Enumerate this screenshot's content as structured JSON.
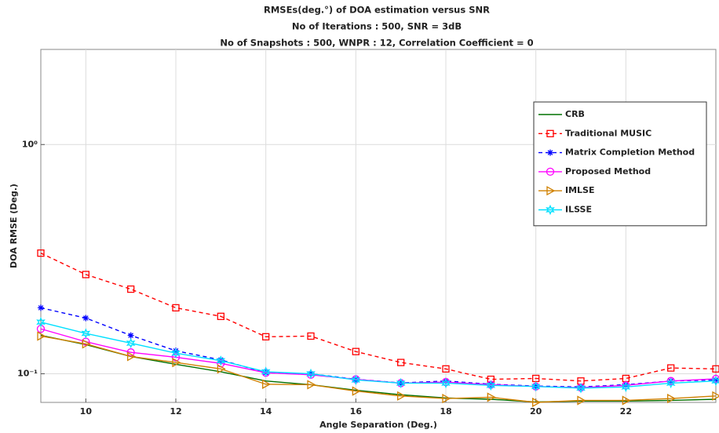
{
  "chart_data": {
    "type": "line",
    "title": [
      "RMSEs(deg.°) of DOA estimation versus SNR",
      "No of Iterations : 500, SNR = 3dB",
      "No of Snapshots : 500, WNPR : 12, Correlation Coefficient = 0"
    ],
    "xlabel": "Angle Separation (Deg.)",
    "ylabel": "DOA RMSE (Deg.)",
    "x": [
      9,
      10,
      11,
      12,
      13,
      14,
      15,
      16,
      17,
      18,
      19,
      20,
      21,
      22,
      23,
      24
    ],
    "xlim": [
      9,
      24
    ],
    "xticks": [
      10,
      12,
      14,
      16,
      18,
      20,
      22
    ],
    "yscale": "log",
    "ylim": [
      0.075,
      2.6
    ],
    "yticks": [
      {
        "value": 0.1,
        "label": "10⁻¹"
      },
      {
        "value": 1,
        "label": "10⁰"
      }
    ],
    "grid": true,
    "legend": "upper right",
    "series": [
      {
        "name": "CRB",
        "color": "#007000",
        "dash": "solid",
        "marker": "none",
        "values": [
          0.147,
          0.134,
          0.119,
          0.11,
          0.102,
          0.093,
          0.0896,
          0.0848,
          0.081,
          0.0784,
          0.0774,
          0.0753,
          0.076,
          0.076,
          0.0765,
          0.0774
        ]
      },
      {
        "name": "Traditional MUSIC",
        "color": "#ff0000",
        "dash": "dashed",
        "marker": "square",
        "values": [
          0.336,
          0.271,
          0.234,
          0.194,
          0.178,
          0.145,
          0.146,
          0.125,
          0.112,
          0.105,
          0.0946,
          0.0954,
          0.093,
          0.0954,
          0.106,
          0.105
        ]
      },
      {
        "name": "Matrix Completion Method",
        "color": "#0000ff",
        "dash": "dashed",
        "marker": "asterisk",
        "values": [
          0.194,
          0.175,
          0.147,
          0.126,
          0.115,
          0.101,
          0.1,
          0.0946,
          0.0912,
          0.093,
          0.09,
          0.0884,
          0.0876,
          0.0896,
          0.093,
          0.094
        ]
      },
      {
        "name": "Proposed Method",
        "color": "#ff00ff",
        "dash": "solid",
        "marker": "circle",
        "values": [
          0.157,
          0.138,
          0.124,
          0.118,
          0.111,
          0.101,
          0.099,
          0.0946,
          0.091,
          0.092,
          0.0896,
          0.088,
          0.087,
          0.089,
          0.093,
          0.095
        ]
      },
      {
        "name": "IMLSE",
        "color": "#d08000",
        "dash": "solid",
        "marker": "triangle-right",
        "values": [
          0.146,
          0.135,
          0.119,
          0.112,
          0.105,
          0.09,
          0.0896,
          0.084,
          0.08,
          0.078,
          0.079,
          0.075,
          0.0765,
          0.0765,
          0.078,
          0.08
        ]
      },
      {
        "name": "ILSSE",
        "color": "#00e0ff",
        "dash": "solid",
        "marker": "hexagram",
        "values": [
          0.168,
          0.15,
          0.136,
          0.123,
          0.114,
          0.102,
          0.1,
          0.094,
          0.091,
          0.091,
          0.089,
          0.088,
          0.0866,
          0.0876,
          0.091,
          0.093
        ]
      }
    ]
  }
}
